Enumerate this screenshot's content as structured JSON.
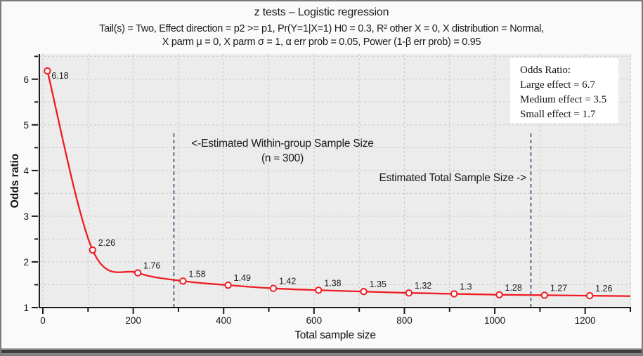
{
  "header": {
    "title": "z tests – Logistic regression",
    "subtitle_line1": "Tail(s) = Two, Effect direction = p2 >= p1, Pr(Y=1|X=1) H0 = 0.3, R² other X = 0, X distribution = Normal,",
    "subtitle_line2": "X parm μ = 0, X parm σ = 1, α err prob = 0.05, Power (1-β err prob) = 0.95"
  },
  "chart_data": {
    "type": "line",
    "title": "z tests – Logistic regression",
    "xlabel": "Total sample size",
    "ylabel": "Odds ratio",
    "xlim": [
      0,
      1300
    ],
    "ylim": [
      1,
      6.55
    ],
    "x_major_ticks": [
      0,
      200,
      400,
      600,
      800,
      1000,
      1200
    ],
    "x_minor_step": 100,
    "y_major_ticks": [
      1,
      2,
      3,
      4,
      5,
      6
    ],
    "y_minor_step": 0.5,
    "grid": true,
    "legend_position": "top-right",
    "series": [
      {
        "name": "odds-ratio-vs-sample-size",
        "points": [
          {
            "x": 10,
            "y": 6.18,
            "label": "6.18"
          },
          {
            "x": 110,
            "y": 2.26,
            "label": "2.26"
          },
          {
            "x": 210,
            "y": 1.76,
            "label": "1.76"
          },
          {
            "x": 310,
            "y": 1.58,
            "label": "1.58"
          },
          {
            "x": 410,
            "y": 1.49,
            "label": "1.49"
          },
          {
            "x": 510,
            "y": 1.42,
            "label": "1.42"
          },
          {
            "x": 610,
            "y": 1.38,
            "label": "1.38"
          },
          {
            "x": 710,
            "y": 1.35,
            "label": "1.35"
          },
          {
            "x": 810,
            "y": 1.32,
            "label": "1.32"
          },
          {
            "x": 910,
            "y": 1.3,
            "label": "1.3"
          },
          {
            "x": 1010,
            "y": 1.28,
            "label": "1.28"
          },
          {
            "x": 1110,
            "y": 1.27,
            "label": "1.27"
          },
          {
            "x": 1210,
            "y": 1.26,
            "label": "1.26"
          }
        ],
        "curve_end": {
          "x": 1300,
          "y": 1.25
        }
      }
    ],
    "reference_lines": [
      {
        "x": 290,
        "name": "within-group-sample-size"
      },
      {
        "x": 1080,
        "name": "total-sample-size"
      }
    ]
  },
  "annotations": {
    "within_group_line1": "<-Estimated Within-group Sample Size",
    "within_group_line2": "(n ≈ 300)",
    "total": "Estimated Total Sample Size ->"
  },
  "legend": {
    "title": "Odds Ratio:",
    "items": [
      "Large effect = 6.7",
      "Medium effect = 3.5",
      "Small effect = 1.7"
    ]
  },
  "colors": {
    "series": "#ee1c23",
    "marker_fill": "#ffffff",
    "reference_line": "#17375d",
    "grid": "#c9c9c9",
    "plot_bg": "#ececec",
    "axis": "#1c1c1c",
    "tick_label": "#141414",
    "point_label": "#222222",
    "background": "#fafafa",
    "window_border": "#7b7b7b"
  }
}
